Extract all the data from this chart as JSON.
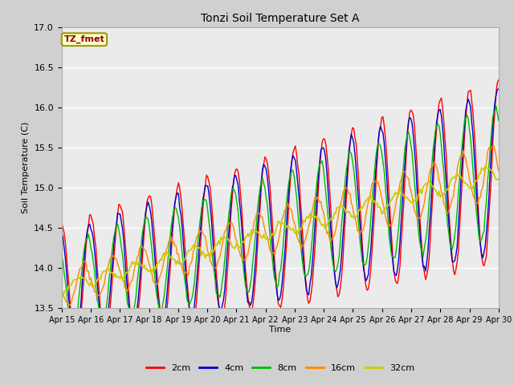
{
  "title": "Tonzi Soil Temperature Set A",
  "xlabel": "Time",
  "ylabel": "Soil Temperature (C)",
  "ylim": [
    13.5,
    17.0
  ],
  "x_tick_labels": [
    "Apr 15",
    "Apr 16",
    "Apr 17",
    "Apr 18",
    "Apr 19",
    "Apr 20",
    "Apr 21",
    "Apr 22",
    "Apr 23",
    "Apr 24",
    "Apr 25",
    "Apr 26",
    "Apr 27",
    "Apr 28",
    "Apr 29",
    "Apr 30"
  ],
  "colors": {
    "2cm": "#ff0000",
    "4cm": "#0000cc",
    "8cm": "#00bb00",
    "16cm": "#ff8800",
    "32cm": "#cccc00"
  },
  "legend_label": "TZ_fmet",
  "legend_box_color": "#ffffcc",
  "legend_box_edge": "#999900",
  "fig_bg_color": "#d0d0d0",
  "plot_bg_color": "#ebebeb",
  "grid_color": "#ffffff"
}
